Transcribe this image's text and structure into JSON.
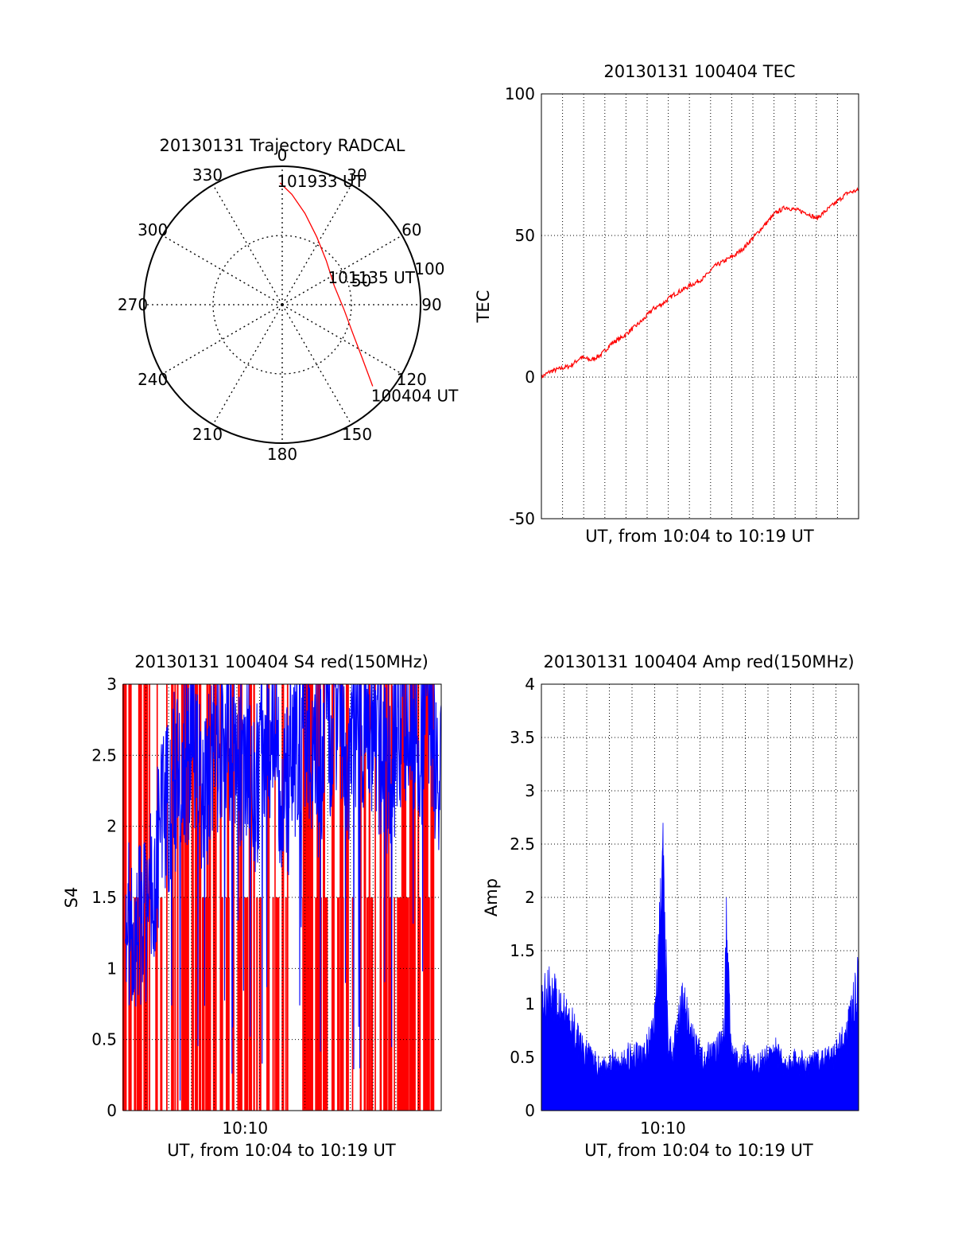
{
  "colors": {
    "primary": "#ff0000",
    "secondary": "#0000ff",
    "axis": "#000000",
    "grid": "#000000"
  },
  "chart_data": [
    {
      "id": "polar",
      "type": "scatter",
      "title": "20130131 Trajectory RADCAL",
      "angle_labels": [
        "0",
        "30",
        "60",
        "90",
        "120",
        "150",
        "180",
        "210",
        "240",
        "270",
        "300",
        "330"
      ],
      "radius_labels": [
        "50",
        "100"
      ],
      "rlim": [
        0,
        100
      ],
      "grid": true,
      "trajectory": [
        {
          "azimuth": -1,
          "r": 88
        },
        {
          "azimuth": 5,
          "r": 80
        },
        {
          "azimuth": 14,
          "r": 68
        },
        {
          "azimuth": 27,
          "r": 55
        },
        {
          "azimuth": 45,
          "r": 45
        },
        {
          "azimuth": 70,
          "r": 40
        },
        {
          "azimuth": 95,
          "r": 45
        },
        {
          "azimuth": 112,
          "r": 55
        },
        {
          "azimuth": 124,
          "r": 70
        },
        {
          "azimuth": 132,
          "r": 88
        }
      ],
      "annotations": [
        {
          "text": "101933 UT",
          "azimuth": -1,
          "r": 88
        },
        {
          "text": "101135 UT",
          "azimuth": 70,
          "r": 40
        },
        {
          "text": "100404 UT",
          "azimuth": 132,
          "r": 88
        }
      ]
    },
    {
      "id": "tec",
      "type": "line",
      "title": "20130131 100404 TEC",
      "xlabel": "UT, from 10:04 to 10:19 UT",
      "ylabel": "TEC",
      "xlim": [
        "10:04:04",
        "10:19:33"
      ],
      "ylim": [
        -50,
        100
      ],
      "yticks": [
        "-50",
        "0",
        "50",
        "100"
      ],
      "grid": true,
      "series": [
        {
          "color": "#ff0000",
          "x": [
            "10:04:04",
            "10:04:30",
            "10:05:00",
            "10:05:30",
            "10:06:00",
            "10:06:30",
            "10:07:00",
            "10:07:30",
            "10:08:00",
            "10:08:30",
            "10:09:00",
            "10:09:30",
            "10:10:00",
            "10:10:30",
            "10:11:00",
            "10:11:30",
            "10:12:00",
            "10:12:30",
            "10:13:00",
            "10:13:30",
            "10:14:00",
            "10:14:30",
            "10:15:00",
            "10:15:30",
            "10:16:00",
            "10:16:30",
            "10:17:00",
            "10:17:30",
            "10:18:00",
            "10:18:30",
            "10:19:00",
            "10:19:33"
          ],
          "y": [
            0,
            2,
            3,
            4,
            7,
            6,
            8,
            12,
            14,
            17,
            20,
            24,
            26,
            29,
            31,
            33,
            35,
            39,
            41,
            43,
            46,
            50,
            54,
            58,
            60,
            59,
            58,
            56,
            59,
            62,
            65,
            66
          ]
        }
      ]
    },
    {
      "id": "s4",
      "type": "line",
      "title": "20130131 100404 S4 red(150MHz)",
      "xlabel": "UT, from 10:04 to 10:19 UT",
      "ylabel": "S4",
      "xlim": [
        "10:04:04",
        "10:19:33"
      ],
      "ylim": [
        0,
        3
      ],
      "yticks": [
        "0",
        "0.5",
        "1",
        "1.5",
        "2",
        "2.5",
        "3"
      ],
      "xticks": [
        "10:10"
      ],
      "grid": true,
      "series": [
        {
          "color": "#0000ff",
          "x": [
            "10:04:10",
            "10:04:30",
            "10:05:00",
            "10:05:30",
            "10:06:00",
            "10:06:30",
            "10:07:00",
            "10:07:30",
            "10:08:00",
            "10:08:30",
            "10:09:00",
            "10:09:30",
            "10:10:00",
            "10:10:30",
            "10:11:00",
            "10:11:30",
            "10:12:00",
            "10:12:30",
            "10:13:00",
            "10:13:30",
            "10:14:00",
            "10:14:30",
            "10:15:00",
            "10:15:30",
            "10:16:00",
            "10:16:30",
            "10:17:00",
            "10:17:30",
            "10:18:00",
            "10:18:30",
            "10:19:00",
            "10:19:30"
          ],
          "y": [
            1.3,
            1.2,
            1.3,
            1.6,
            2.0,
            2.3,
            2.4,
            2.6,
            2.2,
            2.5,
            2.7,
            2.4,
            2.6,
            2.3,
            2.7,
            2.5,
            2.2,
            2.6,
            2.8,
            2.4,
            2.6,
            2.9,
            2.5,
            2.7,
            2.8,
            2.6,
            2.4,
            2.7,
            2.9,
            2.6,
            2.8,
            2.3
          ]
        }
      ]
    },
    {
      "id": "amp",
      "type": "line",
      "title": "20130131 100404 Amp red(150MHz)",
      "xlabel": "UT, from 10:04 to 10:19 UT",
      "ylabel": "Amp",
      "xlim": [
        "10:04:04",
        "10:19:33"
      ],
      "ylim": [
        0,
        4
      ],
      "yticks": [
        "0",
        "0.5",
        "1",
        "1.5",
        "2",
        "2.5",
        "3",
        "3.5",
        "4"
      ],
      "xticks": [
        "10:10"
      ],
      "grid": true,
      "series": [
        {
          "color": "#0000ff",
          "x": [
            "10:04:04",
            "10:04:30",
            "10:05:00",
            "10:05:30",
            "10:06:00",
            "10:06:30",
            "10:07:00",
            "10:07:30",
            "10:08:00",
            "10:08:30",
            "10:09:00",
            "10:09:30",
            "10:09:45",
            "10:10:00",
            "10:10:15",
            "10:10:30",
            "10:11:00",
            "10:11:30",
            "10:12:00",
            "10:12:30",
            "10:13:00",
            "10:13:05",
            "10:13:20",
            "10:13:30",
            "10:14:00",
            "10:14:30",
            "10:15:00",
            "10:15:30",
            "10:16:00",
            "10:16:30",
            "10:17:00",
            "10:17:30",
            "10:18:00",
            "10:18:30",
            "10:19:00",
            "10:19:33"
          ],
          "y": [
            1.3,
            1.4,
            1.2,
            1.0,
            0.8,
            0.6,
            0.5,
            0.6,
            0.55,
            0.7,
            0.6,
            0.9,
            1.5,
            3.1,
            0.8,
            0.7,
            1.3,
            0.8,
            0.6,
            0.7,
            0.9,
            2.2,
            0.7,
            0.6,
            0.65,
            0.55,
            0.6,
            0.7,
            0.5,
            0.6,
            0.55,
            0.6,
            0.6,
            0.7,
            0.9,
            1.5
          ]
        }
      ]
    }
  ]
}
